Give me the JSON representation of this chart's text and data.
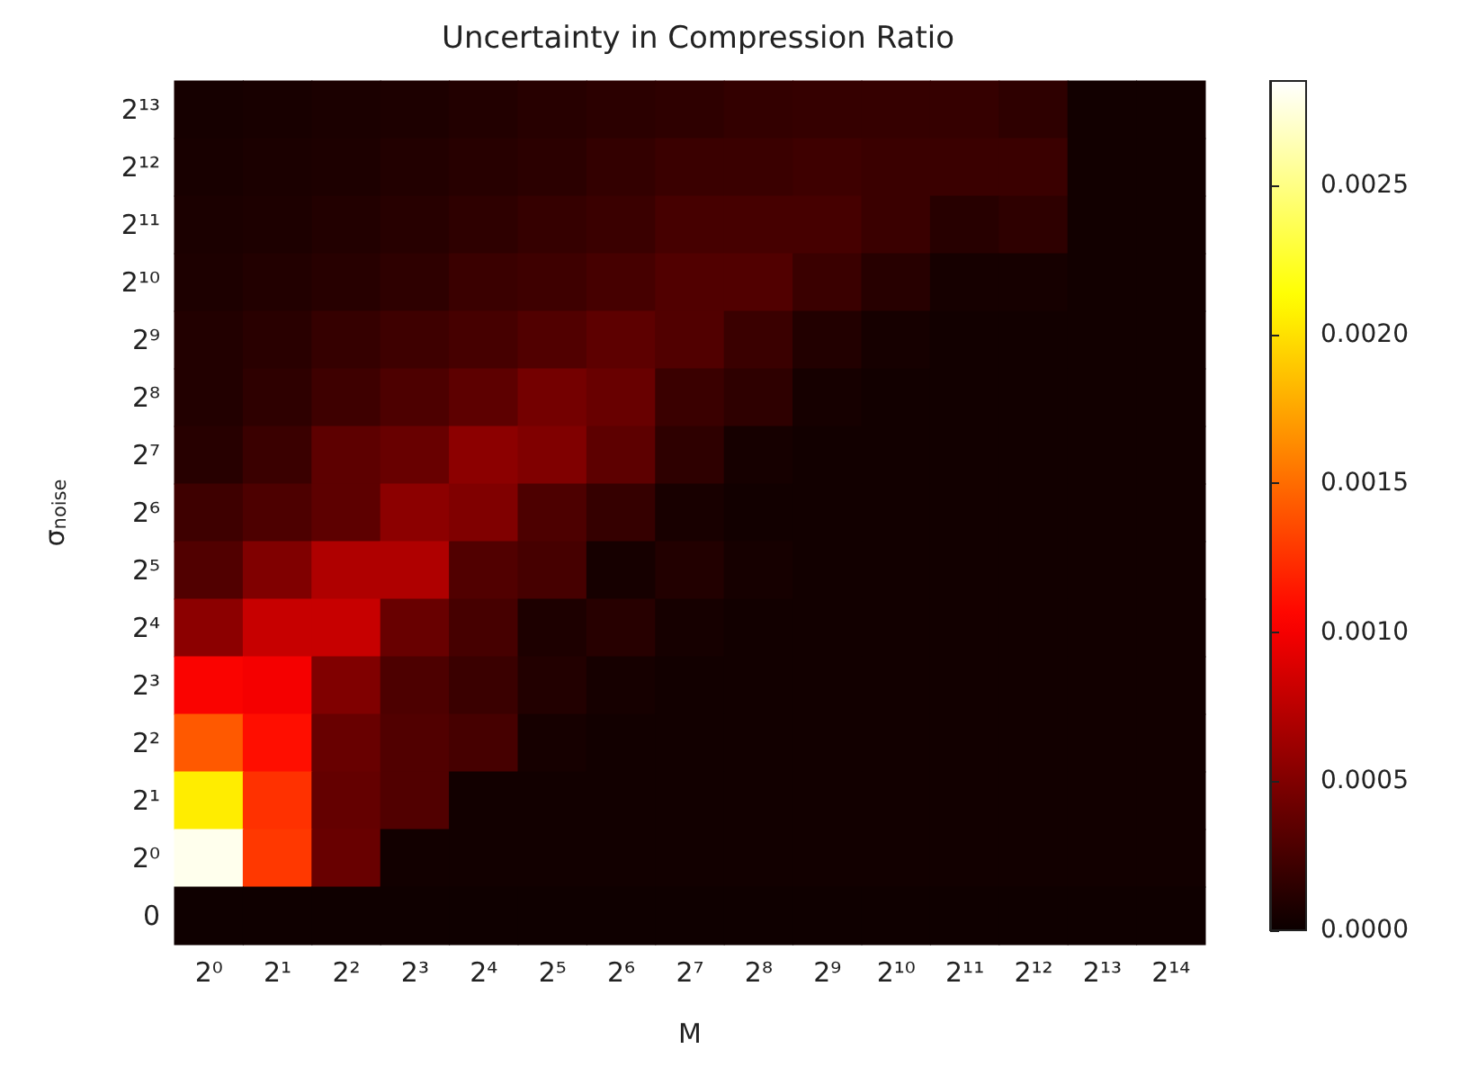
{
  "chart_data": {
    "type": "heatmap",
    "title": "Uncertainty in Compression Ratio",
    "xlabel": "M",
    "ylabel": "σ$_{noise}$",
    "categories": [
      "2⁰",
      "2¹",
      "2²",
      "2³",
      "2⁴",
      "2⁵",
      "2⁶",
      "2⁷",
      "2⁸",
      "2⁹",
      "2¹⁰",
      "2¹¹",
      "2¹²",
      "2¹³",
      "2¹⁴"
    ],
    "y_categories": [
      "2¹³",
      "2¹²",
      "2¹¹",
      "2¹⁰",
      "2⁹",
      "2⁸",
      "2⁷",
      "2⁶",
      "2⁵",
      "2⁴",
      "2³",
      "2²",
      "2¹",
      "2⁰",
      "0"
    ],
    "cells": [
      [
        5e-05,
        6e-05,
        7e-05,
        8e-05,
        0.0001,
        0.00012,
        0.00014,
        0.00015,
        0.00017,
        0.00018,
        0.00018,
        0.00018,
        0.00015,
        3e-05,
        3e-05
      ],
      [
        6e-05,
        7e-05,
        8e-05,
        0.0001,
        0.00012,
        0.00014,
        0.00017,
        0.0002,
        0.0002,
        0.00022,
        0.0002,
        0.0002,
        0.0002,
        3e-05,
        3e-05
      ],
      [
        7e-05,
        8e-05,
        0.0001,
        0.00012,
        0.00015,
        0.00018,
        0.0002,
        0.00025,
        0.00025,
        0.00025,
        0.0002,
        0.00012,
        0.00015,
        3e-05,
        3e-05
      ],
      [
        8e-05,
        0.0001,
        0.00012,
        0.00015,
        0.0002,
        0.00022,
        0.00025,
        0.0003,
        0.0003,
        0.0002,
        0.00012,
        5e-05,
        5e-05,
        3e-05,
        3e-05
      ],
      [
        0.0001,
        0.00013,
        0.00018,
        0.00022,
        0.00025,
        0.0003,
        0.00035,
        0.0003,
        0.0002,
        0.0001,
        5e-05,
        3e-05,
        3e-05,
        3e-05,
        3e-05
      ],
      [
        0.0001,
        0.00015,
        0.00022,
        0.00028,
        0.00035,
        0.00045,
        0.0004,
        0.0002,
        0.00015,
        5e-05,
        3e-05,
        3e-05,
        3e-05,
        3e-05,
        3e-05
      ],
      [
        0.00012,
        0.0002,
        0.00035,
        0.0004,
        0.00055,
        0.0005,
        0.00035,
        0.00015,
        5e-05,
        3e-05,
        3e-05,
        3e-05,
        3e-05,
        3e-05,
        3e-05
      ],
      [
        0.00022,
        0.00028,
        0.00035,
        0.00055,
        0.0005,
        0.00028,
        0.00018,
        6e-05,
        3e-05,
        3e-05,
        3e-05,
        3e-05,
        3e-05,
        3e-05,
        3e-05
      ],
      [
        0.0003,
        0.0005,
        0.0007,
        0.0007,
        0.0003,
        0.00025,
        5e-05,
        0.0001,
        5e-05,
        3e-05,
        3e-05,
        3e-05,
        3e-05,
        3e-05,
        3e-05
      ],
      [
        0.00055,
        0.0008,
        0.0008,
        0.0004,
        0.00025,
        8e-05,
        0.00012,
        5e-05,
        3e-05,
        3e-05,
        3e-05,
        3e-05,
        3e-05,
        3e-05,
        3e-05
      ],
      [
        0.00103,
        0.001,
        0.0005,
        0.00028,
        0.0002,
        0.0001,
        5e-05,
        3e-05,
        3e-05,
        3e-05,
        3e-05,
        3e-05,
        3e-05,
        3e-05,
        3e-05
      ],
      [
        0.00142,
        0.0011,
        0.0004,
        0.0003,
        0.00025,
        5e-05,
        3e-05,
        3e-05,
        3e-05,
        3e-05,
        3e-05,
        3e-05,
        3e-05,
        3e-05,
        3e-05
      ],
      [
        0.00205,
        0.00125,
        0.00038,
        0.0003,
        3e-05,
        3e-05,
        3e-05,
        3e-05,
        3e-05,
        3e-05,
        3e-05,
        3e-05,
        3e-05,
        3e-05,
        3e-05
      ],
      [
        0.0028,
        0.00128,
        0.0004,
        3e-05,
        3e-05,
        3e-05,
        3e-05,
        3e-05,
        3e-05,
        3e-05,
        3e-05,
        3e-05,
        3e-05,
        3e-05,
        3e-05
      ],
      [
        2e-05,
        2e-05,
        2e-05,
        2e-05,
        2e-05,
        2e-05,
        2e-05,
        2e-05,
        2e-05,
        2e-05,
        2e-05,
        2e-05,
        2e-05,
        2e-05,
        2e-05
      ]
    ],
    "clim": [
      0,
      0.00285
    ],
    "cticks": [
      {
        "value": 0,
        "label": "0.0000"
      },
      {
        "value": 0.0005,
        "label": "0.0005"
      },
      {
        "value": 0.001,
        "label": "0.0010"
      },
      {
        "value": 0.0015,
        "label": "0.0015"
      },
      {
        "value": 0.002,
        "label": "0.0020"
      },
      {
        "value": 0.0025,
        "label": "0.0025"
      }
    ]
  }
}
